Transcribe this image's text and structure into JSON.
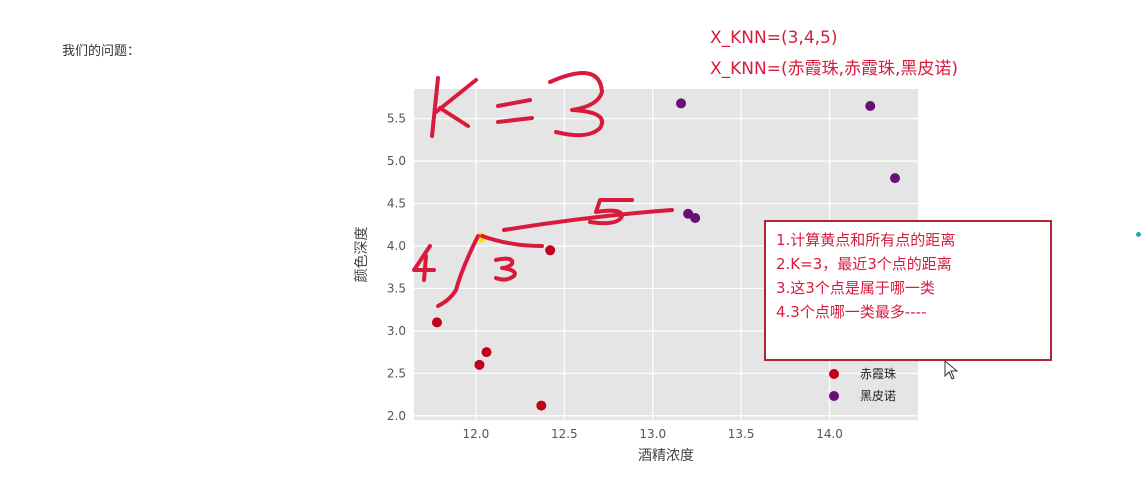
{
  "page": {
    "question_label": "我们的问题：",
    "knn_lines": [
      "X_KNN=(3,4,5)",
      "X_KNN=(赤霞珠,赤霞珠,黑皮诺)"
    ]
  },
  "annotations": {
    "k_text": "K=3",
    "distance_labels": [
      "4",
      "3",
      "5"
    ],
    "ink_color": "#d81b3c"
  },
  "note_box": {
    "lines": [
      "1.计算黄点和所有点的距离",
      "2.K=3，最近3个点的距离",
      "3.这3个点是属于哪一类",
      "4.3个点哪一类最多----"
    ]
  },
  "chart_data": {
    "type": "scatter",
    "xlabel": "酒精浓度",
    "ylabel": "颜色深度",
    "xlim": [
      11.65,
      14.5
    ],
    "ylim": [
      1.95,
      5.85
    ],
    "xticks": [
      12.0,
      12.5,
      13.0,
      13.5,
      14.0
    ],
    "xtick_labels": [
      "12.0",
      "12.5",
      "13.0",
      "13.5",
      "14.0"
    ],
    "yticks": [
      2.0,
      2.5,
      3.0,
      3.5,
      4.0,
      4.5,
      5.0,
      5.5
    ],
    "ytick_labels": [
      "2.0",
      "2.5",
      "3.0",
      "3.5",
      "4.0",
      "4.5",
      "5.0",
      "5.5"
    ],
    "grid": true,
    "background": "#e5e5e5",
    "legend_position": "lower-right",
    "series": [
      {
        "name": "赤霞珠",
        "color": "#c0001c",
        "points": [
          [
            11.78,
            3.1
          ],
          [
            12.02,
            2.6
          ],
          [
            12.06,
            2.75
          ],
          [
            12.37,
            2.12
          ],
          [
            12.42,
            3.95
          ]
        ]
      },
      {
        "name": "黑皮诺",
        "color": "#6a0f7a",
        "points": [
          [
            13.16,
            5.68
          ],
          [
            13.2,
            4.38
          ],
          [
            13.24,
            4.33
          ],
          [
            14.23,
            5.65
          ],
          [
            14.37,
            4.8
          ]
        ]
      }
    ],
    "query_point": {
      "x": 12.03,
      "y": 4.1,
      "color": "#f5e400"
    }
  }
}
